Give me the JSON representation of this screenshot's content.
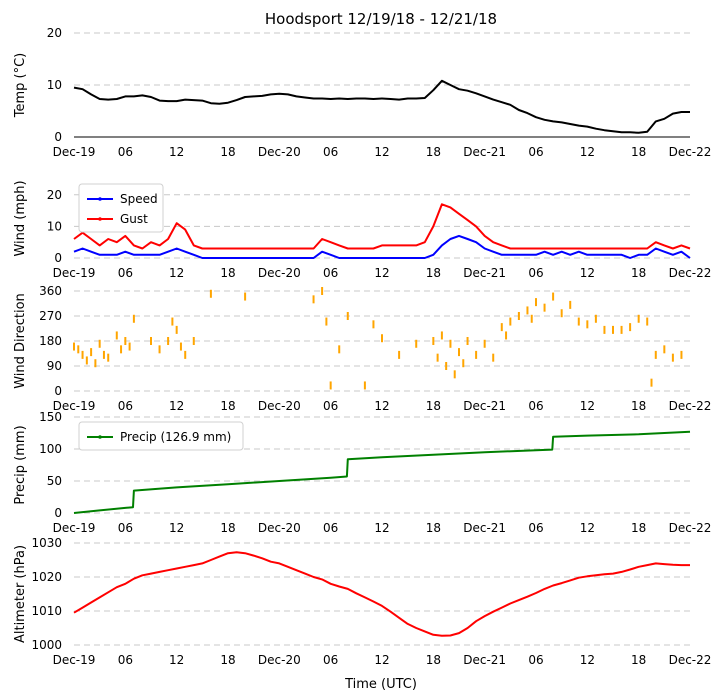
{
  "title": "Hoodsport 12/19/18 - 12/21/18",
  "xlabel": "Time (UTC)",
  "x_ticks": [
    "Dec-19",
    "06",
    "12",
    "18",
    "Dec-20",
    "06",
    "12",
    "18",
    "Dec-21",
    "06",
    "12",
    "18",
    "Dec-22"
  ],
  "x_range_hours": [
    0,
    72
  ],
  "colors": {
    "temp": "#000000",
    "speed": "#0000ff",
    "gust": "#ff0000",
    "direction": "#ffa500",
    "precip": "#008000",
    "altimeter": "#ff0000",
    "grid": "#c8c8c8"
  },
  "chart_data": [
    {
      "id": "temp",
      "type": "line",
      "ylabel": "Temp (°C)",
      "ylim": [
        0,
        20
      ],
      "yticks": [
        0,
        10,
        20
      ],
      "series": [
        {
          "name": "Temp",
          "color": "#000000",
          "x": [
            0,
            1,
            2,
            3,
            4,
            5,
            6,
            7,
            8,
            9,
            10,
            11,
            12,
            13,
            14,
            15,
            16,
            17,
            18,
            19,
            20,
            21,
            22,
            23,
            24,
            25,
            26,
            27,
            28,
            29,
            30,
            31,
            32,
            33,
            34,
            35,
            36,
            37,
            38,
            39,
            40,
            41,
            42,
            43,
            44,
            45,
            46,
            47,
            48,
            49,
            50,
            51,
            52,
            53,
            54,
            55,
            56,
            57,
            58,
            59,
            60,
            61,
            62,
            63,
            64,
            65,
            66,
            67,
            68,
            69,
            70,
            71,
            72
          ],
          "values": [
            9.5,
            9.2,
            8.2,
            7.3,
            7.2,
            7.3,
            7.8,
            7.8,
            8.0,
            7.7,
            7.0,
            6.9,
            6.9,
            7.2,
            7.1,
            7.0,
            6.5,
            6.4,
            6.6,
            7.1,
            7.7,
            7.8,
            7.9,
            8.2,
            8.3,
            8.2,
            7.8,
            7.6,
            7.4,
            7.4,
            7.3,
            7.4,
            7.3,
            7.4,
            7.4,
            7.3,
            7.4,
            7.3,
            7.2,
            7.4,
            7.4,
            7.5,
            9.0,
            10.8,
            10.0,
            9.2,
            8.9,
            8.4,
            7.8,
            7.2,
            6.7,
            6.2,
            5.2,
            4.6,
            3.8,
            3.3,
            3.0,
            2.8,
            2.5,
            2.2,
            2.0,
            1.6,
            1.3,
            1.1,
            0.9,
            0.9,
            0.8,
            1.0,
            3.0,
            3.5,
            4.5,
            4.8,
            4.8
          ]
        }
      ],
      "legend": null
    },
    {
      "id": "wind",
      "type": "line",
      "ylabel": "Wind (mph)",
      "ylim": [
        0,
        25
      ],
      "yticks": [
        0,
        10,
        20
      ],
      "series": [
        {
          "name": "Speed",
          "color": "#0000ff",
          "x": [
            0,
            1,
            2,
            3,
            4,
            5,
            6,
            7,
            8,
            9,
            10,
            11,
            12,
            13,
            14,
            15,
            16,
            17,
            18,
            19,
            20,
            21,
            22,
            23,
            24,
            25,
            26,
            27,
            28,
            29,
            30,
            31,
            32,
            33,
            34,
            35,
            36,
            37,
            38,
            39,
            40,
            41,
            42,
            43,
            44,
            45,
            46,
            47,
            48,
            49,
            50,
            51,
            52,
            53,
            54,
            55,
            56,
            57,
            58,
            59,
            60,
            61,
            62,
            63,
            64,
            65,
            66,
            67,
            68,
            69,
            70,
            71,
            72
          ],
          "values": [
            2,
            3,
            2,
            1,
            1,
            1,
            2,
            1,
            1,
            1,
            1,
            2,
            3,
            2,
            1,
            0,
            0,
            0,
            0,
            0,
            0,
            0,
            0,
            0,
            0,
            0,
            0,
            0,
            0,
            2,
            1,
            0,
            0,
            0,
            0,
            0,
            0,
            0,
            0,
            0,
            0,
            0,
            1,
            4,
            6,
            7,
            6,
            5,
            3,
            2,
            1,
            1,
            1,
            1,
            1,
            2,
            1,
            2,
            1,
            2,
            1,
            1,
            1,
            1,
            1,
            0,
            1,
            1,
            3,
            2,
            1,
            2,
            0
          ]
        },
        {
          "name": "Gust",
          "color": "#ff0000",
          "x": [
            0,
            1,
            2,
            3,
            4,
            5,
            6,
            7,
            8,
            9,
            10,
            11,
            12,
            13,
            14,
            15,
            16,
            17,
            18,
            19,
            20,
            21,
            22,
            23,
            24,
            25,
            26,
            27,
            28,
            29,
            30,
            31,
            32,
            33,
            34,
            35,
            36,
            37,
            38,
            39,
            40,
            41,
            42,
            43,
            44,
            45,
            46,
            47,
            48,
            49,
            50,
            51,
            52,
            53,
            54,
            55,
            56,
            57,
            58,
            59,
            60,
            61,
            62,
            63,
            64,
            65,
            66,
            67,
            68,
            69,
            70,
            71,
            72
          ],
          "values": [
            6,
            8,
            6,
            4,
            6,
            5,
            7,
            4,
            3,
            5,
            4,
            6,
            11,
            9,
            4,
            3,
            3,
            3,
            3,
            3,
            3,
            3,
            3,
            3,
            3,
            3,
            3,
            3,
            3,
            6,
            5,
            4,
            3,
            3,
            3,
            3,
            4,
            4,
            4,
            4,
            4,
            5,
            10,
            17,
            16,
            14,
            12,
            10,
            7,
            5,
            4,
            3,
            3,
            3,
            3,
            3,
            3,
            3,
            3,
            3,
            3,
            3,
            3,
            3,
            3,
            3,
            3,
            3,
            5,
            4,
            3,
            4,
            3
          ]
        }
      ],
      "legend": {
        "loc": "upper left",
        "entries": [
          "Speed",
          "Gust"
        ]
      }
    },
    {
      "id": "direction",
      "type": "scatter",
      "ylabel": "Wind Direction",
      "ylim": [
        0,
        360
      ],
      "yticks": [
        0,
        90,
        180,
        270,
        360
      ],
      "series": [
        {
          "name": "Direction",
          "color": "#ffa500",
          "x": [
            0,
            0.5,
            1,
            1.5,
            2,
            2.5,
            3,
            3.5,
            4,
            5,
            5.5,
            6,
            6.5,
            7,
            9,
            10,
            11,
            11.5,
            12,
            12.5,
            13,
            14,
            16,
            20,
            28,
            29,
            29.5,
            30,
            31,
            32,
            34,
            35,
            36,
            38,
            40,
            42,
            42.5,
            43,
            43.5,
            44,
            44.5,
            45,
            45.5,
            46,
            47,
            48,
            49,
            50,
            50.5,
            51,
            52,
            53,
            53.5,
            54,
            55,
            56,
            57,
            58,
            59,
            60,
            61,
            62,
            63,
            64,
            65,
            66,
            67,
            67.5,
            68,
            69,
            70,
            71
          ],
          "values": [
            160,
            150,
            130,
            110,
            140,
            100,
            170,
            130,
            120,
            200,
            150,
            180,
            160,
            260,
            180,
            150,
            180,
            250,
            220,
            160,
            130,
            180,
            350,
            340,
            330,
            360,
            250,
            20,
            150,
            270,
            20,
            240,
            190,
            130,
            170,
            180,
            120,
            200,
            90,
            170,
            60,
            140,
            100,
            180,
            130,
            170,
            120,
            230,
            200,
            250,
            270,
            290,
            260,
            320,
            300,
            340,
            280,
            310,
            250,
            240,
            260,
            220,
            220,
            220,
            230,
            260,
            250,
            30,
            130,
            150,
            120,
            130
          ]
        }
      ],
      "legend": null
    },
    {
      "id": "precip",
      "type": "line",
      "ylabel": "Precip (mm)",
      "ylim": [
        0,
        150
      ],
      "yticks": [
        0,
        50,
        100,
        150
      ],
      "series": [
        {
          "name": "Precip (126.9 mm)",
          "color": "#008000",
          "x": [
            0,
            3,
            6,
            6.9,
            7,
            12,
            18,
            24,
            30,
            31.9,
            32,
            36,
            42,
            48,
            54,
            55.9,
            56,
            60,
            66,
            72
          ],
          "values": [
            0,
            4,
            8,
            9,
            35,
            40,
            45,
            50,
            55,
            57,
            84,
            87,
            91,
            95,
            98,
            99,
            119,
            121,
            123,
            126.9
          ]
        }
      ],
      "legend": {
        "loc": "upper left",
        "entries": [
          "Precip (126.9 mm)"
        ]
      }
    },
    {
      "id": "altimeter",
      "type": "line",
      "ylabel": "Altimeter (hPa)",
      "ylim": [
        1000,
        1030
      ],
      "yticks": [
        1000,
        1010,
        1020,
        1030
      ],
      "series": [
        {
          "name": "Altimeter",
          "color": "#ff0000",
          "x": [
            0,
            1,
            2,
            3,
            4,
            5,
            6,
            7,
            8,
            9,
            10,
            11,
            12,
            13,
            14,
            15,
            16,
            17,
            18,
            19,
            20,
            21,
            22,
            23,
            24,
            25,
            26,
            27,
            28,
            29,
            30,
            31,
            32,
            33,
            34,
            35,
            36,
            37,
            38,
            39,
            40,
            41,
            42,
            43,
            44,
            45,
            46,
            47,
            48,
            49,
            50,
            51,
            52,
            53,
            54,
            55,
            56,
            57,
            58,
            59,
            60,
            61,
            62,
            63,
            64,
            65,
            66,
            67,
            68,
            69,
            70,
            71,
            72
          ],
          "values": [
            1009.5,
            1011,
            1012.5,
            1014,
            1015.5,
            1017,
            1018,
            1019.5,
            1020.5,
            1021,
            1021.5,
            1022,
            1022.5,
            1023,
            1023.5,
            1024,
            1025,
            1026,
            1027,
            1027.3,
            1027,
            1026.3,
            1025.5,
            1024.5,
            1024,
            1023,
            1022,
            1021,
            1020,
            1019.3,
            1018,
            1017.2,
            1016.5,
            1015.2,
            1014,
            1012.8,
            1011.5,
            1009.8,
            1008,
            1006.2,
            1005,
            1004,
            1003,
            1002.7,
            1002.8,
            1003.5,
            1005,
            1007,
            1008.5,
            1009.8,
            1011,
            1012.2,
            1013.2,
            1014.2,
            1015.3,
            1016.5,
            1017.5,
            1018.2,
            1019,
            1019.8,
            1020.2,
            1020.5,
            1020.8,
            1021,
            1021.5,
            1022.2,
            1023,
            1023.5,
            1024,
            1023.8,
            1023.6,
            1023.5,
            1023.5
          ]
        }
      ],
      "legend": null
    }
  ]
}
